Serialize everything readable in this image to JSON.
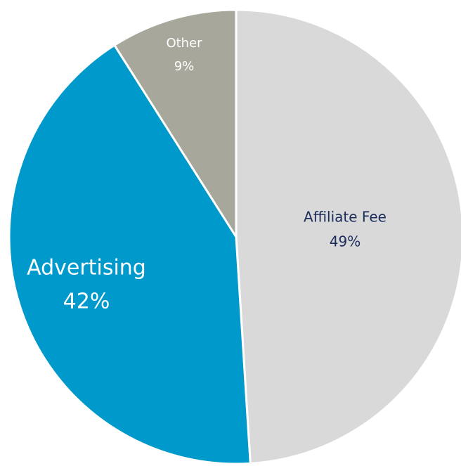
{
  "chart_data": {
    "type": "pie",
    "categories": [
      "Affiliate Fee",
      "Advertising",
      "Other"
    ],
    "values": [
      49,
      42,
      9
    ],
    "value_labels": [
      "49%",
      "42%",
      "9%"
    ],
    "colors": [
      "#d9d9d9",
      "#0099cc",
      "#a8a79b"
    ]
  }
}
